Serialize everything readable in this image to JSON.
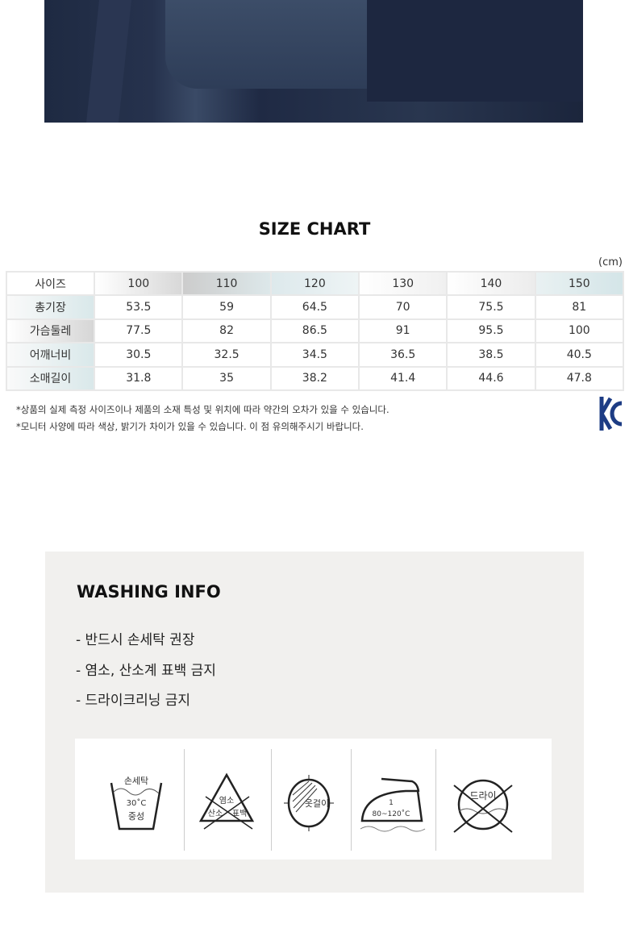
{
  "size_chart": {
    "title": "SIZE CHART",
    "unit": "(cm)",
    "header": [
      "사이즈",
      "100",
      "110",
      "120",
      "130",
      "140",
      "150"
    ],
    "rows": [
      [
        "총기장",
        "53.5",
        "59",
        "64.5",
        "70",
        "75.5",
        "81"
      ],
      [
        "가슴둘레",
        "77.5",
        "82",
        "86.5",
        "91",
        "95.5",
        "100"
      ],
      [
        "어깨너비",
        "30.5",
        "32.5",
        "34.5",
        "36.5",
        "38.5",
        "40.5"
      ],
      [
        "소매길이",
        "31.8",
        "35",
        "38.2",
        "41.4",
        "44.6",
        "47.8"
      ]
    ],
    "notes": [
      "*상품의 실제 측정 사이즈이나 제품의 소재 특성 및 위치에 따라 약간의 오차가 있을 수 있습니다.",
      "*모니터 사양에 따라 색상, 밝기가 차이가 있을 수 있습니다. 이 점 유의해주시기 바랍니다."
    ],
    "logo": "KC"
  },
  "washing": {
    "title": "WASHING INFO",
    "items": [
      "-  반드시 손세탁 권장",
      "-  염소, 산소계 표백 금지",
      "-  드라이크리닝 금지"
    ],
    "icons": [
      {
        "name": "hand-wash-icon",
        "lines": [
          "손세탁",
          "30˚C",
          "중성"
        ]
      },
      {
        "name": "no-bleach-icon",
        "lines": [
          "염소",
          "산소",
          "표백"
        ]
      },
      {
        "name": "hang-dry-icon",
        "lines": [
          "옷걸이"
        ]
      },
      {
        "name": "iron-icon",
        "lines": [
          "1",
          "80~120˚C"
        ]
      },
      {
        "name": "no-dry-clean-icon",
        "lines": [
          "드라이"
        ]
      }
    ]
  }
}
